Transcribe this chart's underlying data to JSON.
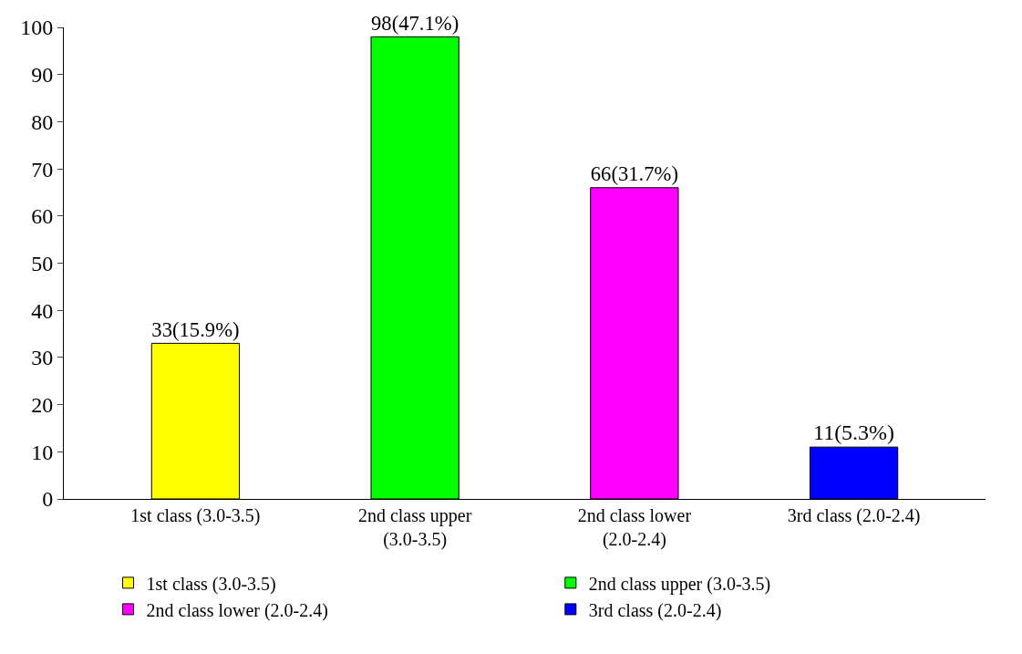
{
  "chart_data": {
    "type": "bar",
    "categories": [
      "1st class (3.0-3.5)",
      "2nd class upper (3.0-3.5)",
      "2nd class lower (2.0-2.4)",
      "3rd class (2.0-2.4)"
    ],
    "series": [
      {
        "name": "1st class (3.0-3.5)",
        "color": "#ffff00",
        "values": [
          33,
          null,
          null,
          null
        ],
        "value_labels": [
          "33(15.9%)",
          null,
          null,
          null
        ]
      },
      {
        "name": "2nd class upper (3.0-3.5)",
        "color": "#00ff00",
        "values": [
          null,
          98,
          null,
          null
        ],
        "value_labels": [
          null,
          "98(47.1%)",
          null,
          null
        ]
      },
      {
        "name": "2nd class lower (2.0-2.4)",
        "color": "#ff00ff",
        "values": [
          null,
          null,
          66,
          null
        ],
        "value_labels": [
          null,
          null,
          "66(31.7%)",
          null
        ]
      },
      {
        "name": "3rd class (2.0-2.4)",
        "color": "#0000ff",
        "values": [
          null,
          null,
          null,
          11
        ],
        "value_labels": [
          null,
          null,
          null,
          "11(5.3%)"
        ]
      }
    ],
    "ylim": [
      0,
      100
    ],
    "yticks": [
      0,
      10,
      20,
      30,
      40,
      50,
      60,
      70,
      80,
      90,
      100
    ],
    "grid": false,
    "legend": "bottom"
  }
}
